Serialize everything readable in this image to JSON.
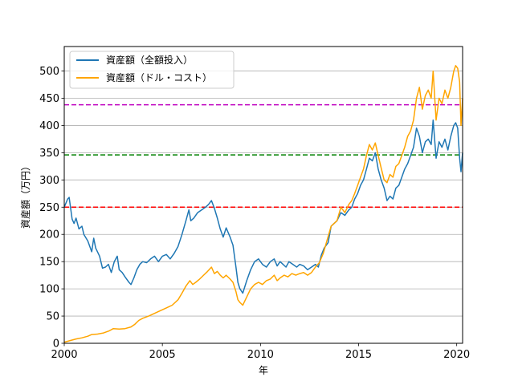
{
  "chart_data": {
    "type": "line",
    "title": "",
    "xlabel": "年",
    "ylabel": "資産額（万円）",
    "xlim": [
      2000,
      2020.3
    ],
    "ylim": [
      0,
      545
    ],
    "x_ticks": [
      2000,
      2005,
      2010,
      2015,
      2020
    ],
    "y_ticks": [
      0,
      50,
      100,
      150,
      200,
      250,
      300,
      350,
      400,
      450,
      500
    ],
    "grid": "horizontal",
    "legend_position": "top-left",
    "series": [
      {
        "name": "資産額（全額投入）",
        "color": "#1f77b4",
        "points": [
          [
            2000.0,
            250
          ],
          [
            2000.17,
            265
          ],
          [
            2000.25,
            268
          ],
          [
            2000.4,
            228
          ],
          [
            2000.5,
            220
          ],
          [
            2000.6,
            230
          ],
          [
            2000.75,
            210
          ],
          [
            2000.9,
            215
          ],
          [
            2001.0,
            200
          ],
          [
            2001.2,
            188
          ],
          [
            2001.4,
            168
          ],
          [
            2001.5,
            193
          ],
          [
            2001.6,
            175
          ],
          [
            2001.8,
            160
          ],
          [
            2001.95,
            138
          ],
          [
            2002.1,
            140
          ],
          [
            2002.25,
            145
          ],
          [
            2002.4,
            130
          ],
          [
            2002.55,
            150
          ],
          [
            2002.7,
            160
          ],
          [
            2002.8,
            135
          ],
          [
            2002.95,
            130
          ],
          [
            2003.1,
            122
          ],
          [
            2003.3,
            112
          ],
          [
            2003.4,
            108
          ],
          [
            2003.55,
            120
          ],
          [
            2003.7,
            135
          ],
          [
            2003.85,
            145
          ],
          [
            2004.0,
            150
          ],
          [
            2004.2,
            148
          ],
          [
            2004.4,
            155
          ],
          [
            2004.6,
            160
          ],
          [
            2004.8,
            150
          ],
          [
            2005.0,
            160
          ],
          [
            2005.2,
            163
          ],
          [
            2005.4,
            155
          ],
          [
            2005.6,
            165
          ],
          [
            2005.8,
            178
          ],
          [
            2006.0,
            200
          ],
          [
            2006.2,
            225
          ],
          [
            2006.35,
            245
          ],
          [
            2006.45,
            225
          ],
          [
            2006.6,
            230
          ],
          [
            2006.8,
            240
          ],
          [
            2007.0,
            245
          ],
          [
            2007.2,
            250
          ],
          [
            2007.35,
            255
          ],
          [
            2007.5,
            262
          ],
          [
            2007.65,
            248
          ],
          [
            2007.8,
            230
          ],
          [
            2007.95,
            210
          ],
          [
            2008.1,
            195
          ],
          [
            2008.25,
            212
          ],
          [
            2008.45,
            195
          ],
          [
            2008.6,
            180
          ],
          [
            2008.75,
            140
          ],
          [
            2008.85,
            112
          ],
          [
            2008.95,
            100
          ],
          [
            2009.1,
            92
          ],
          [
            2009.3,
            115
          ],
          [
            2009.5,
            135
          ],
          [
            2009.7,
            150
          ],
          [
            2009.9,
            155
          ],
          [
            2010.1,
            145
          ],
          [
            2010.3,
            140
          ],
          [
            2010.5,
            150
          ],
          [
            2010.7,
            155
          ],
          [
            2010.85,
            142
          ],
          [
            2011.0,
            150
          ],
          [
            2011.15,
            145
          ],
          [
            2011.3,
            140
          ],
          [
            2011.45,
            150
          ],
          [
            2011.65,
            145
          ],
          [
            2011.85,
            140
          ],
          [
            2012.0,
            145
          ],
          [
            2012.2,
            142
          ],
          [
            2012.4,
            135
          ],
          [
            2012.6,
            140
          ],
          [
            2012.8,
            145
          ],
          [
            2012.95,
            140
          ],
          [
            2013.1,
            162
          ],
          [
            2013.25,
            175
          ],
          [
            2013.45,
            185
          ],
          [
            2013.6,
            215
          ],
          [
            2013.75,
            220
          ],
          [
            2013.9,
            225
          ],
          [
            2014.1,
            240
          ],
          [
            2014.3,
            235
          ],
          [
            2014.5,
            245
          ],
          [
            2014.65,
            250
          ],
          [
            2014.8,
            265
          ],
          [
            2014.95,
            275
          ],
          [
            2015.1,
            290
          ],
          [
            2015.25,
            300
          ],
          [
            2015.4,
            320
          ],
          [
            2015.55,
            340
          ],
          [
            2015.7,
            335
          ],
          [
            2015.85,
            350
          ],
          [
            2016.0,
            320
          ],
          [
            2016.15,
            300
          ],
          [
            2016.3,
            285
          ],
          [
            2016.45,
            262
          ],
          [
            2016.6,
            270
          ],
          [
            2016.75,
            265
          ],
          [
            2016.9,
            285
          ],
          [
            2017.05,
            290
          ],
          [
            2017.2,
            305
          ],
          [
            2017.35,
            320
          ],
          [
            2017.5,
            330
          ],
          [
            2017.65,
            345
          ],
          [
            2017.8,
            360
          ],
          [
            2017.95,
            395
          ],
          [
            2018.1,
            380
          ],
          [
            2018.25,
            350
          ],
          [
            2018.4,
            370
          ],
          [
            2018.55,
            375
          ],
          [
            2018.7,
            365
          ],
          [
            2018.8,
            410
          ],
          [
            2018.95,
            340
          ],
          [
            2019.1,
            370
          ],
          [
            2019.25,
            360
          ],
          [
            2019.4,
            375
          ],
          [
            2019.55,
            355
          ],
          [
            2019.7,
            380
          ],
          [
            2019.85,
            400
          ],
          [
            2019.95,
            405
          ],
          [
            2020.05,
            395
          ],
          [
            2020.15,
            340
          ],
          [
            2020.22,
            315
          ],
          [
            2020.3,
            350
          ]
        ]
      },
      {
        "name": "資産額（ドル・コスト）",
        "color": "#ffa500",
        "points": [
          [
            2000.0,
            2
          ],
          [
            2000.3,
            5
          ],
          [
            2000.6,
            8
          ],
          [
            2000.9,
            10
          ],
          [
            2001.2,
            13
          ],
          [
            2001.4,
            16
          ],
          [
            2001.7,
            17
          ],
          [
            2002.0,
            19
          ],
          [
            2002.3,
            23
          ],
          [
            2002.5,
            27
          ],
          [
            2002.8,
            26
          ],
          [
            2003.1,
            27
          ],
          [
            2003.4,
            30
          ],
          [
            2003.6,
            35
          ],
          [
            2003.8,
            42
          ],
          [
            2004.0,
            46
          ],
          [
            2004.3,
            50
          ],
          [
            2004.6,
            55
          ],
          [
            2004.9,
            60
          ],
          [
            2005.2,
            65
          ],
          [
            2005.5,
            70
          ],
          [
            2005.8,
            80
          ],
          [
            2006.0,
            92
          ],
          [
            2006.2,
            105
          ],
          [
            2006.4,
            115
          ],
          [
            2006.55,
            108
          ],
          [
            2006.7,
            112
          ],
          [
            2006.9,
            118
          ],
          [
            2007.1,
            125
          ],
          [
            2007.3,
            132
          ],
          [
            2007.5,
            140
          ],
          [
            2007.65,
            128
          ],
          [
            2007.8,
            132
          ],
          [
            2007.95,
            125
          ],
          [
            2008.1,
            120
          ],
          [
            2008.25,
            125
          ],
          [
            2008.45,
            118
          ],
          [
            2008.6,
            112
          ],
          [
            2008.75,
            95
          ],
          [
            2008.85,
            80
          ],
          [
            2008.95,
            75
          ],
          [
            2009.1,
            70
          ],
          [
            2009.3,
            85
          ],
          [
            2009.5,
            100
          ],
          [
            2009.7,
            108
          ],
          [
            2009.9,
            112
          ],
          [
            2010.1,
            108
          ],
          [
            2010.3,
            115
          ],
          [
            2010.5,
            118
          ],
          [
            2010.7,
            125
          ],
          [
            2010.85,
            115
          ],
          [
            2011.0,
            120
          ],
          [
            2011.2,
            125
          ],
          [
            2011.4,
            122
          ],
          [
            2011.6,
            128
          ],
          [
            2011.8,
            125
          ],
          [
            2012.0,
            128
          ],
          [
            2012.2,
            130
          ],
          [
            2012.4,
            125
          ],
          [
            2012.6,
            130
          ],
          [
            2012.8,
            140
          ],
          [
            2013.0,
            148
          ],
          [
            2013.2,
            165
          ],
          [
            2013.4,
            190
          ],
          [
            2013.6,
            215
          ],
          [
            2013.75,
            220
          ],
          [
            2013.9,
            225
          ],
          [
            2014.1,
            250
          ],
          [
            2014.3,
            240
          ],
          [
            2014.5,
            255
          ],
          [
            2014.65,
            262
          ],
          [
            2014.8,
            275
          ],
          [
            2014.95,
            290
          ],
          [
            2015.1,
            305
          ],
          [
            2015.25,
            320
          ],
          [
            2015.4,
            345
          ],
          [
            2015.55,
            365
          ],
          [
            2015.7,
            355
          ],
          [
            2015.85,
            368
          ],
          [
            2016.0,
            345
          ],
          [
            2016.15,
            322
          ],
          [
            2016.3,
            300
          ],
          [
            2016.45,
            295
          ],
          [
            2016.6,
            310
          ],
          [
            2016.75,
            305
          ],
          [
            2016.9,
            325
          ],
          [
            2017.05,
            330
          ],
          [
            2017.2,
            345
          ],
          [
            2017.35,
            360
          ],
          [
            2017.5,
            380
          ],
          [
            2017.65,
            390
          ],
          [
            2017.8,
            410
          ],
          [
            2017.95,
            450
          ],
          [
            2018.1,
            470
          ],
          [
            2018.25,
            430
          ],
          [
            2018.4,
            455
          ],
          [
            2018.55,
            465
          ],
          [
            2018.7,
            450
          ],
          [
            2018.8,
            500
          ],
          [
            2018.95,
            410
          ],
          [
            2019.1,
            450
          ],
          [
            2019.25,
            440
          ],
          [
            2019.4,
            465
          ],
          [
            2019.55,
            450
          ],
          [
            2019.7,
            470
          ],
          [
            2019.85,
            500
          ],
          [
            2019.95,
            510
          ],
          [
            2020.05,
            505
          ],
          [
            2020.15,
            480
          ],
          [
            2020.22,
            400
          ],
          [
            2020.3,
            450
          ]
        ]
      }
    ],
    "reference_lines": [
      {
        "y": 438,
        "color": "#bf00bf",
        "style": "dashed"
      },
      {
        "y": 346,
        "color": "#008000",
        "style": "dashed"
      },
      {
        "y": 250,
        "color": "#ff0000",
        "style": "dashed"
      }
    ]
  }
}
